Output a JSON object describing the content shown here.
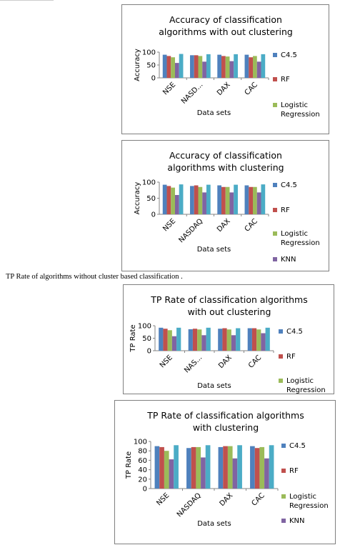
{
  "caption": "TP Rate of algorithms without cluster based classification .",
  "chart_data": [
    {
      "type": "bar",
      "title": "Accuracy of classification algorithms with out clustering",
      "x_label": "Data sets",
      "y_label": "Accuracy",
      "categories": [
        "NSE",
        "NASD...",
        "DAX",
        "CAC"
      ],
      "ylim": [
        0,
        100
      ],
      "yticks": [
        0,
        50,
        100
      ],
      "series": [
        {
          "name": "C4.5",
          "color": "#4f81bd",
          "values": [
            90,
            88,
            90,
            90
          ]
        },
        {
          "name": "RF",
          "color": "#c0504d",
          "values": [
            85,
            88,
            85,
            80
          ]
        },
        {
          "name": "Logistic Regression",
          "color": "#9bbb59",
          "values": [
            80,
            85,
            83,
            85
          ]
        },
        {
          "color": "#8064a2",
          "values": [
            58,
            63,
            65,
            63
          ]
        },
        {
          "color": "#4bacc6",
          "values": [
            93,
            92,
            92,
            92
          ]
        }
      ]
    },
    {
      "type": "bar",
      "title": "Accuracy of classification algorithms with clustering",
      "x_label": "Data sets",
      "y_label": "Accuracy",
      "categories": [
        "NSE",
        "NASDAQ",
        "DAX",
        "CAC"
      ],
      "ylim": [
        0,
        100
      ],
      "yticks": [
        0,
        50,
        100
      ],
      "series": [
        {
          "name": "C4.5",
          "color": "#4f81bd",
          "values": [
            92,
            88,
            90,
            90
          ]
        },
        {
          "name": "RF",
          "color": "#c0504d",
          "values": [
            88,
            90,
            85,
            85
          ]
        },
        {
          "name": "Logistic Regression",
          "color": "#9bbb59",
          "values": [
            83,
            85,
            85,
            85
          ]
        },
        {
          "name": "KNN",
          "color": "#8064a2",
          "values": [
            60,
            68,
            68,
            68
          ]
        },
        {
          "color": "#4bacc6",
          "values": [
            93,
            92,
            92,
            93
          ]
        }
      ]
    },
    {
      "type": "bar",
      "title": "TP Rate of classification algorithms with out clustering",
      "x_label": "Data sets",
      "y_label": "TP Rate",
      "categories": [
        "NSE",
        "NAS...",
        "DAX",
        "CAC"
      ],
      "ylim": [
        0,
        100
      ],
      "yticks": [
        0,
        50,
        100
      ],
      "series": [
        {
          "name": "C4.5",
          "color": "#4f81bd",
          "values": [
            92,
            86,
            88,
            90
          ]
        },
        {
          "name": "RF",
          "color": "#c0504d",
          "values": [
            88,
            88,
            90,
            90
          ]
        },
        {
          "name": "Logistic Regression",
          "color": "#9bbb59",
          "values": [
            82,
            85,
            85,
            85
          ]
        },
        {
          "color": "#8064a2",
          "values": [
            58,
            62,
            62,
            70
          ]
        },
        {
          "color": "#4bacc6",
          "values": [
            92,
            92,
            90,
            92
          ]
        }
      ]
    },
    {
      "type": "bar",
      "title": "TP Rate of classification algorithms with clustering",
      "x_label": "Data sets",
      "y_label": "TP Rate",
      "categories": [
        "NSE",
        "NASDAQ",
        "DAX",
        "CAC"
      ],
      "ylim": [
        0,
        100
      ],
      "yticks": [
        0,
        20,
        40,
        60,
        80,
        100
      ],
      "series": [
        {
          "name": "C4.5",
          "color": "#4f81bd",
          "values": [
            90,
            86,
            88,
            90
          ]
        },
        {
          "name": "RF",
          "color": "#c0504d",
          "values": [
            88,
            88,
            90,
            86
          ]
        },
        {
          "name": "Logistic Regression",
          "color": "#9bbb59",
          "values": [
            80,
            88,
            90,
            88
          ]
        },
        {
          "name": "KNN",
          "color": "#8064a2",
          "values": [
            62,
            66,
            64,
            64
          ]
        },
        {
          "color": "#4bacc6",
          "values": [
            92,
            92,
            92,
            92
          ]
        }
      ]
    }
  ]
}
